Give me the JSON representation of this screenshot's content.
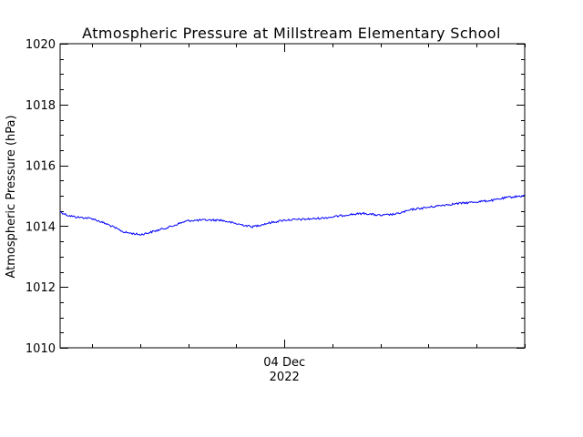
{
  "chart_data": {
    "type": "line",
    "title": "Atmospheric Pressure at Millstream Elementary School",
    "xlabel": "",
    "ylabel": "Atmospheric Pressure (hPa)",
    "ylim": [
      1010,
      1020
    ],
    "yticks": [
      "1010",
      "1012",
      "1014",
      "1016",
      "1018",
      "1020"
    ],
    "xrange": [
      "2022-12-03T10:00",
      "2022-12-04T15:00"
    ],
    "xticks": [
      {
        "at": "2022-12-04T00:00",
        "label": "04 Dec",
        "sublabel": "2022"
      }
    ],
    "grid": false,
    "legend": "none",
    "line_color": "#0000ff",
    "series": [
      {
        "x": [
          "2022-12-03T10:00",
          "2022-12-03T10:30",
          "2022-12-03T11:00",
          "2022-12-03T12:00",
          "2022-12-03T13:00",
          "2022-12-03T14:00",
          "2022-12-03T15:00",
          "2022-12-03T15:30",
          "2022-12-03T16:00",
          "2022-12-03T17:00",
          "2022-12-03T17:30",
          "2022-12-03T18:00",
          "2022-12-03T19:00",
          "2022-12-03T20:00",
          "2022-12-03T21:00",
          "2022-12-03T22:00",
          "2022-12-03T23:00",
          "2022-12-04T00:00",
          "2022-12-04T01:00",
          "2022-12-04T02:00",
          "2022-12-04T03:00",
          "2022-12-04T04:00",
          "2022-12-04T05:00",
          "2022-12-04T06:00",
          "2022-12-04T07:00",
          "2022-12-04T08:00",
          "2022-12-04T09:00",
          "2022-12-04T10:00",
          "2022-12-04T11:00",
          "2022-12-04T12:00",
          "2022-12-04T13:00",
          "2022-12-04T14:00",
          "2022-12-04T15:00"
        ],
        "values": [
          1014.47,
          1014.35,
          1014.3,
          1014.25,
          1014.05,
          1013.8,
          1013.72,
          1013.78,
          1013.85,
          1014.0,
          1014.1,
          1014.18,
          1014.2,
          1014.2,
          1014.08,
          1013.98,
          1014.1,
          1014.2,
          1014.22,
          1014.25,
          1014.3,
          1014.38,
          1014.42,
          1014.35,
          1014.4,
          1014.55,
          1014.62,
          1014.7,
          1014.75,
          1014.8,
          1014.85,
          1014.95,
          1015.0
        ]
      }
    ]
  }
}
